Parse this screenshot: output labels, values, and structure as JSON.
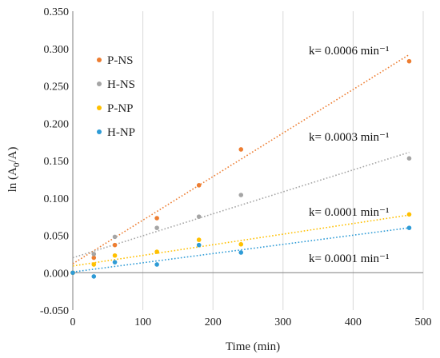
{
  "chart_data": {
    "type": "scatter",
    "xlabel": "Time (min)",
    "ylabel_main": "ln (A",
    "ylabel_sub": "0",
    "ylabel_tail": "/A)",
    "xlim": [
      0,
      500
    ],
    "ylim": [
      -0.05,
      0.35
    ],
    "xticks": [
      0,
      100,
      200,
      300,
      400,
      500
    ],
    "yticks": [
      -0.05,
      0.0,
      0.05,
      0.1,
      0.15,
      0.2,
      0.25,
      0.3,
      0.35
    ],
    "xtick_labels": [
      "0",
      "100",
      "200",
      "300",
      "400",
      "500"
    ],
    "ytick_labels": [
      "-0.050",
      "0.000",
      "0.050",
      "0.100",
      "0.150",
      "0.200",
      "0.250",
      "0.300",
      "0.350"
    ],
    "grid": "vertical",
    "legend_position": "top-left",
    "series": [
      {
        "name": "P-NS",
        "color": "#ed7d31",
        "x": [
          0,
          30,
          60,
          120,
          180,
          240,
          480
        ],
        "y": [
          0.0,
          0.02,
          0.037,
          0.073,
          0.117,
          0.165,
          0.283
        ],
        "trend": [
          0.012,
          0.000583
        ],
        "annotation": "k= 0.0006 min⁻¹"
      },
      {
        "name": "H-NS",
        "color": "#a5a5a5",
        "x": [
          0,
          30,
          60,
          120,
          180,
          240,
          480
        ],
        "y": [
          0.0,
          0.025,
          0.048,
          0.06,
          0.075,
          0.104,
          0.153
        ],
        "trend": [
          0.02,
          0.000294
        ],
        "annotation": "k= 0.0003 min⁻¹"
      },
      {
        "name": "P-NP",
        "color": "#ffc000",
        "x": [
          0,
          30,
          60,
          120,
          180,
          240,
          480
        ],
        "y": [
          0.0,
          0.011,
          0.023,
          0.028,
          0.044,
          0.038,
          0.078
        ],
        "trend": [
          0.009,
          0.000142
        ],
        "annotation": "k= 0.0001 min⁻¹"
      },
      {
        "name": "H-NP",
        "color": "#2e9bd6",
        "x": [
          0,
          30,
          60,
          120,
          180,
          240,
          480
        ],
        "y": [
          0.0,
          -0.005,
          0.014,
          0.011,
          0.037,
          0.027,
          0.06
        ],
        "trend": [
          0.001,
          0.000123
        ],
        "annotation": "k= 0.0001 min⁻¹"
      }
    ]
  }
}
